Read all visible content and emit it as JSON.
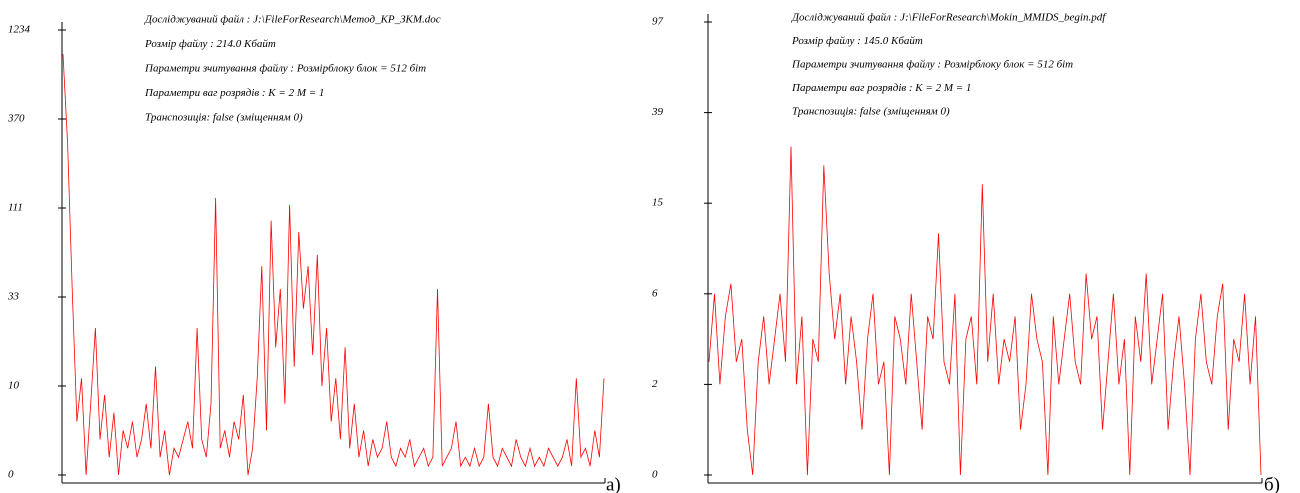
{
  "chart_data": [
    {
      "type": "line",
      "annotations": [
        "Досліджуваний файл : J:\\FileForResearch\\Метод_КР_ЗКМ.doc",
        "Розмір файлу : 214.0 Кбайт",
        "Параметри зчитування файлу :  Розмірблоку блок = 512 біт",
        "Параметри ваг розрядів : K = 2  M = 1",
        "Транспозиція: false (зміщенням 0)"
      ],
      "label": "а)",
      "color": "#ff0000",
      "ylim": [
        0,
        1234
      ],
      "yticks": [
        0,
        10,
        33,
        111,
        370,
        1234
      ],
      "values": [
        1000,
        300,
        40,
        6,
        12,
        0,
        8,
        25,
        4,
        9,
        2,
        7,
        0,
        5,
        3,
        6,
        2,
        4,
        8,
        3,
        15,
        2,
        5,
        0,
        3,
        2,
        4,
        6,
        3,
        25,
        4,
        2,
        8,
        140,
        3,
        5,
        2,
        6,
        4,
        9,
        0,
        3,
        12,
        60,
        5,
        100,
        20,
        40,
        8,
        120,
        15,
        90,
        30,
        60,
        18,
        70,
        10,
        25,
        6,
        12,
        4,
        20,
        3,
        8,
        2,
        5,
        1,
        4,
        2,
        3,
        6,
        2,
        1,
        3,
        2,
        4,
        1,
        2,
        3,
        1,
        2,
        40,
        1,
        2,
        3,
        6,
        1,
        2,
        1,
        3,
        1,
        2,
        8,
        2,
        1,
        3,
        2,
        1,
        4,
        2,
        1,
        3,
        1,
        2,
        1,
        3,
        2,
        1,
        2,
        4,
        1,
        12,
        2,
        3,
        1,
        5,
        2,
        12
      ]
    },
    {
      "type": "line",
      "annotations": [
        "Досліджуваний файл : J:\\FileForResearch\\Mokin_MMIDS_begin.pdf",
        "Розмір файлу : 145.0 Кбайт",
        "Параметри зчитування файлу :  Розмірблоку блок = 512 біт",
        "Параметри ваг розрядів : K = 2  M = 1",
        "Транспозиція: false (зміщенням 0)"
      ],
      "label": "б)",
      "color": "#ff0000",
      "ylim": [
        0,
        97
      ],
      "yticks": [
        0,
        2,
        6,
        15,
        39,
        97
      ],
      "values": [
        3,
        6,
        2,
        5,
        7,
        3,
        4,
        1,
        0,
        3,
        5,
        2,
        4,
        6,
        3,
        30,
        2,
        5,
        0,
        4,
        3,
        25,
        8,
        4,
        6,
        2,
        5,
        3,
        1,
        4,
        6,
        2,
        3,
        0,
        5,
        4,
        2,
        6,
        3,
        1,
        5,
        4,
        12,
        3,
        2,
        6,
        0,
        4,
        5,
        2,
        20,
        3,
        6,
        2,
        4,
        3,
        5,
        1,
        2,
        6,
        4,
        3,
        0,
        5,
        2,
        4,
        6,
        3,
        2,
        8,
        4,
        5,
        1,
        3,
        6,
        2,
        4,
        0,
        5,
        3,
        8,
        2,
        4,
        6,
        1,
        3,
        5,
        2,
        0,
        4,
        6,
        3,
        2,
        5,
        7,
        1,
        4,
        3,
        6,
        2,
        5,
        0
      ]
    }
  ]
}
